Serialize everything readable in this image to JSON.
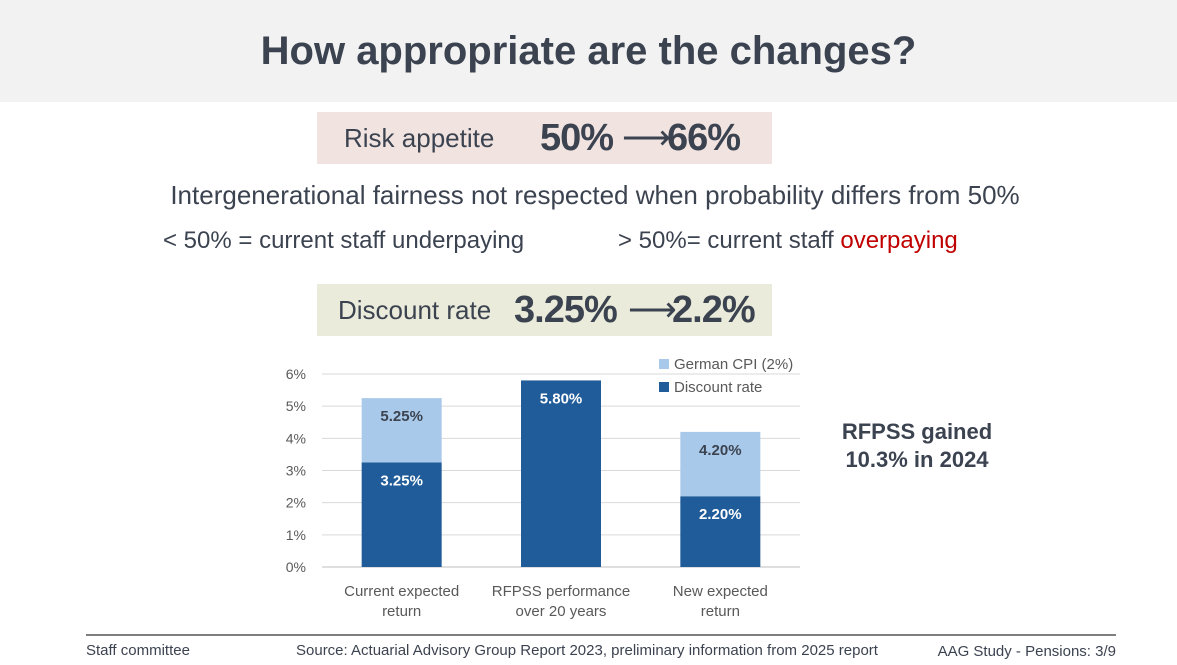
{
  "title": "How appropriate are the changes?",
  "risk": {
    "label": "Risk appetite",
    "from": "50%",
    "arrow": "⟶",
    "to": "66%"
  },
  "fairness": {
    "statement": "Intergenerational fairness not respected when probability differs from 50%",
    "below": "< 50% = current staff underpaying",
    "above_prefix": "> 50%= current staff ",
    "above_highlight": "overpaying"
  },
  "discount": {
    "label": "Discount rate",
    "from": "3.25%",
    "arrow": "⟶",
    "to": "2.2%"
  },
  "side_note": {
    "line1": "RFPSS gained",
    "line2": "10.3% in 2024"
  },
  "colors": {
    "discount_rate": "#1f5c99",
    "german_cpi": "#a9c9ea",
    "highlight_red": "#c00000"
  },
  "chart_data": {
    "type": "bar",
    "stacked": true,
    "categories": [
      [
        "Current expected",
        "return"
      ],
      [
        "RFPSS performance",
        "over 20 years"
      ],
      [
        "New expected",
        "return"
      ]
    ],
    "series": [
      {
        "name": "Discount rate",
        "values": [
          3.25,
          5.8,
          2.2
        ],
        "labels": [
          "3.25%",
          "5.80%",
          "2.20%"
        ],
        "color": "#1f5c99"
      },
      {
        "name": "German CPI (2%)",
        "values": [
          2.0,
          0,
          2.0
        ],
        "labels": [
          "5.25%",
          "",
          "4.20%"
        ],
        "color": "#a9c9ea"
      }
    ],
    "ylim": [
      0,
      6
    ],
    "yticks": [
      "0%",
      "1%",
      "2%",
      "3%",
      "4%",
      "5%",
      "6%"
    ],
    "grid": true,
    "legend_position": "top-right"
  },
  "footer": {
    "left": "Staff committee",
    "center": "Source: Actuarial Advisory Group Report 2023, preliminary information from 2025 report",
    "right": "AAG Study - Pensions: 3/9"
  }
}
